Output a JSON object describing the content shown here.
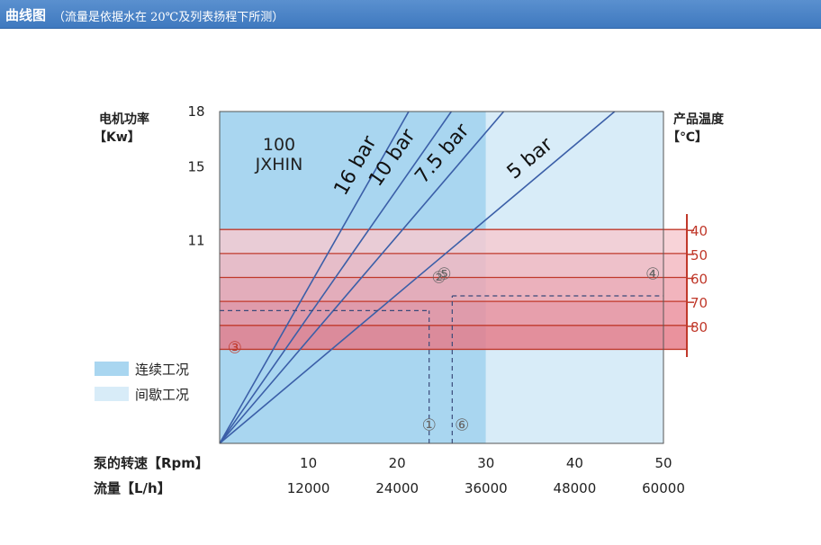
{
  "header": {
    "title": "曲线图",
    "subtitle": "（流量是依据水在 20℃及列表扬程下所测）"
  },
  "chart_data": {
    "type": "line",
    "product": {
      "line1": "100",
      "line2": "JXHIN"
    },
    "y_left": {
      "label_line1": "电机功率",
      "label_line2": "【Kw】",
      "ticks": [
        "18",
        "15",
        "11"
      ],
      "tick_values": [
        18,
        15,
        11
      ],
      "range": [
        0,
        18
      ]
    },
    "y_right": {
      "label_line1": "产品温度",
      "label_line2": "【℃】",
      "ticks": [
        "40",
        "50",
        "60",
        "70",
        "80"
      ],
      "color": "#c0392b"
    },
    "x_rpm": {
      "label": "泵的转速【Rpm】",
      "ticks": [
        "10",
        "20",
        "30",
        "40",
        "50"
      ],
      "tick_values": [
        10,
        20,
        30,
        40,
        50
      ],
      "range": [
        0,
        50
      ]
    },
    "x_flow": {
      "label": "流量【L/h】",
      "ticks": [
        "12000",
        "24000",
        "36000",
        "48000",
        "60000"
      ]
    },
    "series": [
      {
        "name": "16 bar",
        "points": [
          [
            0,
            0
          ],
          [
            21.3,
            18
          ]
        ]
      },
      {
        "name": "10 bar",
        "points": [
          [
            0,
            0
          ],
          [
            26.1,
            18
          ]
        ]
      },
      {
        "name": "7.5 bar",
        "points": [
          [
            0,
            0
          ],
          [
            32.0,
            18
          ]
        ]
      },
      {
        "name": "5 bar",
        "points": [
          [
            0,
            0
          ],
          [
            44.5,
            18
          ]
        ]
      }
    ],
    "zones": [
      {
        "name": "连续工况",
        "x_range": [
          0,
          30
        ],
        "color": "#a9d6f0"
      },
      {
        "name": "间歇工况",
        "x_range": [
          30,
          50
        ],
        "color": "#d8ecf8"
      }
    ],
    "temperature_bands": [
      {
        "label": "40",
        "power_range": [
          10.3,
          11.6
        ],
        "color": "#f6c9cf"
      },
      {
        "label": "50",
        "power_range": [
          9.0,
          10.3
        ],
        "color": "#f3b7c0"
      },
      {
        "label": "60",
        "power_range": [
          7.7,
          9.0
        ],
        "color": "#efa3ae"
      },
      {
        "label": "70",
        "power_range": [
          6.4,
          7.7
        ],
        "color": "#ea8e9b"
      },
      {
        "label": "80",
        "power_range": [
          5.1,
          6.4
        ],
        "color": "#e57a88"
      }
    ],
    "annotations": [
      {
        "label": "①",
        "x": 23.6,
        "y": 0.7
      },
      {
        "label": "②",
        "x": 24.7,
        "y": 8.7
      },
      {
        "label": "③",
        "x": 1.7,
        "y": 4.9
      },
      {
        "label": "④",
        "x": 48.8,
        "y": 8.9
      },
      {
        "label": "⑤",
        "x": 25.3,
        "y": 8.9
      },
      {
        "label": "⑥",
        "x": 27.3,
        "y": 0.7
      }
    ],
    "guide_lines": [
      {
        "x": 23.6,
        "y": 7.2
      },
      {
        "x": 26.2,
        "y": 8.0
      }
    ],
    "legend": [
      {
        "label": "连续工况",
        "color": "#a9d6f0"
      },
      {
        "label": "间歇工况",
        "color": "#d8ecf8"
      }
    ],
    "legend_position": "bottom-left",
    "grid": false
  }
}
